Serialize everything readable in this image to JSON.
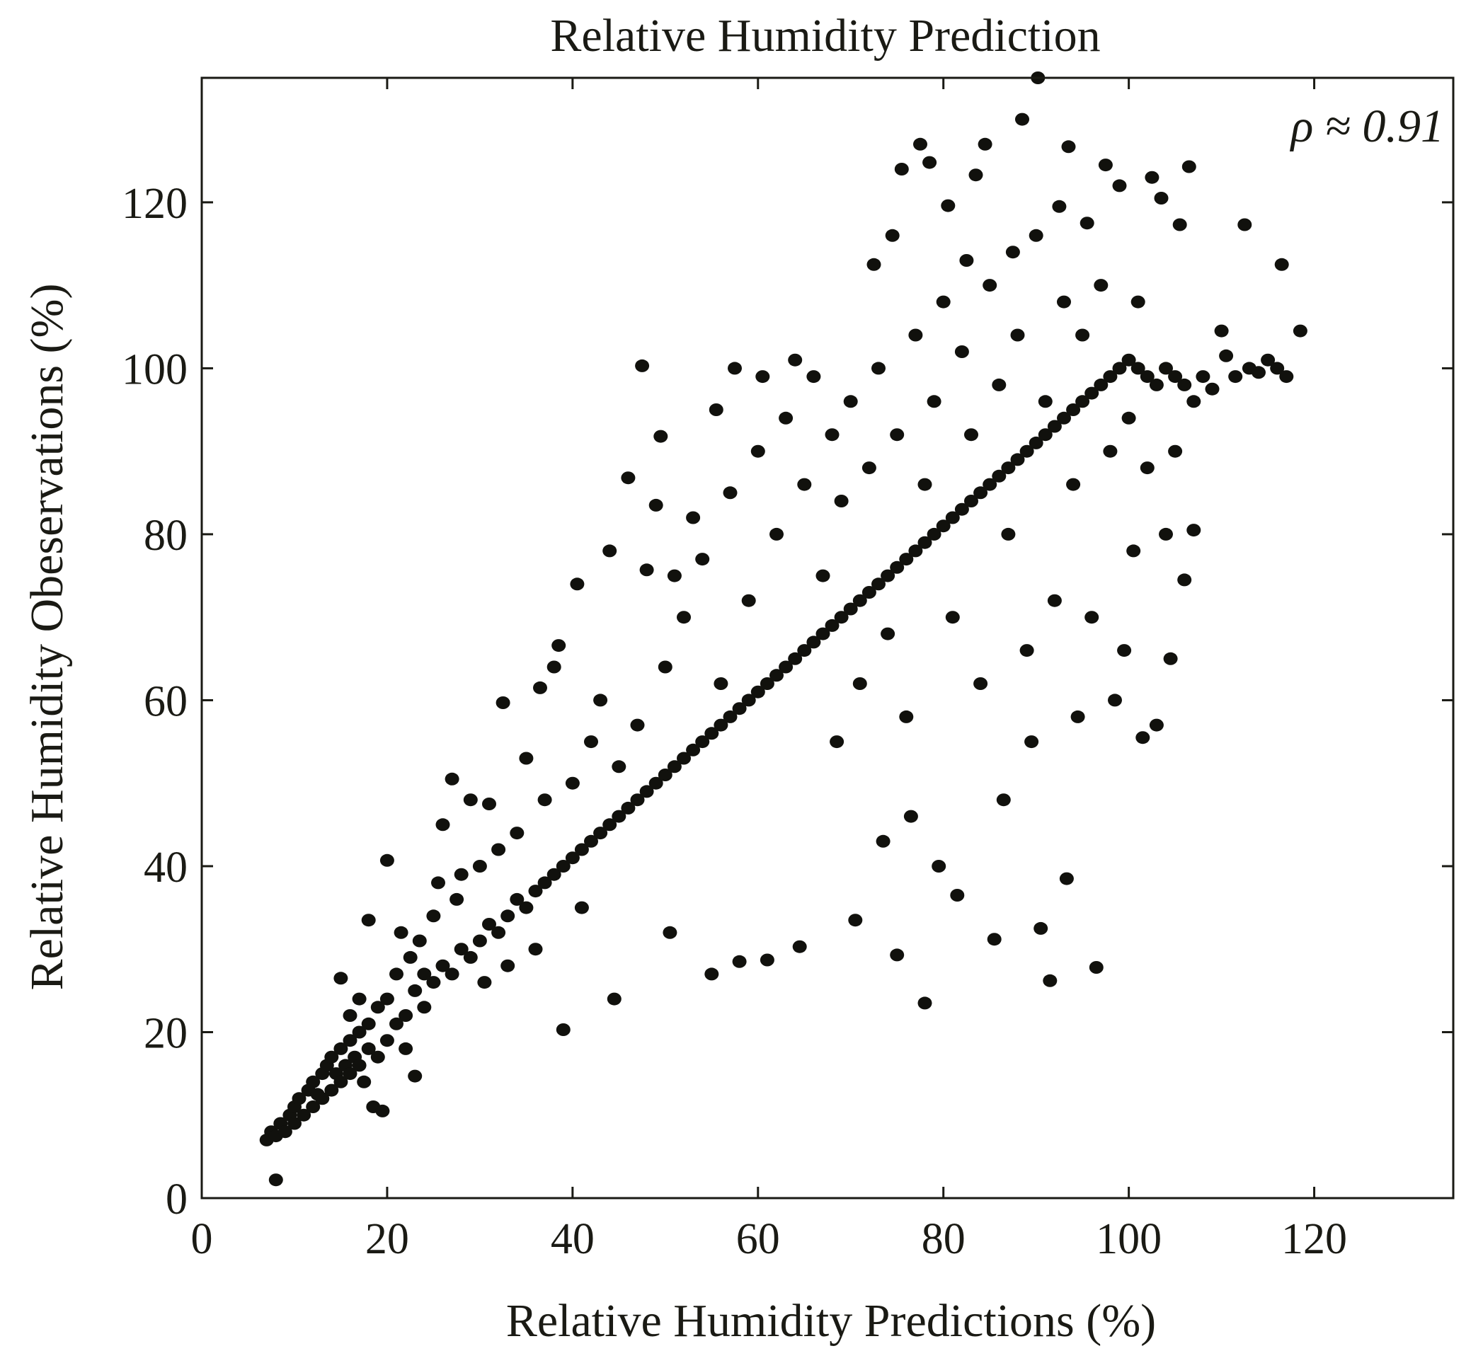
{
  "chart_data": {
    "type": "scatter",
    "title": "Relative Humidity Prediction",
    "xlabel": "Relative Humidity Predictions (%)",
    "ylabel": "Relative Humidity Obeservations (%)",
    "annotation": "ρ ≈ 0.91",
    "xlim": [
      0,
      135
    ],
    "ylim": [
      0,
      135
    ],
    "xticks": [
      0,
      20,
      40,
      60,
      80,
      100,
      120
    ],
    "yticks": [
      0,
      20,
      40,
      60,
      80,
      100,
      120
    ],
    "xtick_labels": [
      "0",
      "20",
      "40",
      "60",
      "80",
      "100",
      "120"
    ],
    "ytick_labels": [
      "0",
      "20",
      "40",
      "60",
      "80",
      "100",
      "120"
    ],
    "grid": false,
    "legend": "none",
    "marker_color": "#11110d",
    "points": [
      [
        7,
        7
      ],
      [
        7.5,
        8
      ],
      [
        8,
        2.2
      ],
      [
        8,
        7.5
      ],
      [
        8.5,
        9
      ],
      [
        9,
        8
      ],
      [
        9.5,
        10
      ],
      [
        10,
        9
      ],
      [
        10,
        11
      ],
      [
        10.5,
        12
      ],
      [
        11,
        10
      ],
      [
        11.5,
        13
      ],
      [
        12,
        11
      ],
      [
        12,
        14
      ],
      [
        12.5,
        12.5
      ],
      [
        13,
        15
      ],
      [
        13,
        12
      ],
      [
        13.5,
        16
      ],
      [
        14,
        13
      ],
      [
        14,
        17
      ],
      [
        14.5,
        15
      ],
      [
        15,
        14
      ],
      [
        15,
        18
      ],
      [
        15,
        26.5
      ],
      [
        15.5,
        16
      ],
      [
        16,
        15
      ],
      [
        16,
        19
      ],
      [
        16,
        22
      ],
      [
        16.5,
        17
      ],
      [
        17,
        16
      ],
      [
        17,
        20
      ],
      [
        17,
        24
      ],
      [
        17.5,
        14
      ],
      [
        18,
        18
      ],
      [
        18,
        21
      ],
      [
        18,
        33.5
      ],
      [
        18.5,
        11
      ],
      [
        19,
        17
      ],
      [
        19,
        23
      ],
      [
        19.5,
        10.5
      ],
      [
        20,
        19
      ],
      [
        20,
        24
      ],
      [
        20,
        40.7
      ],
      [
        21,
        21
      ],
      [
        21,
        27
      ],
      [
        21.5,
        32
      ],
      [
        22,
        22
      ],
      [
        22,
        18
      ],
      [
        22.5,
        29
      ],
      [
        23,
        25
      ],
      [
        23,
        14.7
      ],
      [
        23.5,
        31
      ],
      [
        24,
        23
      ],
      [
        24,
        27
      ],
      [
        25,
        26
      ],
      [
        25,
        34
      ],
      [
        25.5,
        38
      ],
      [
        26,
        28
      ],
      [
        26,
        45
      ],
      [
        27,
        27
      ],
      [
        27,
        50.5
      ],
      [
        27.5,
        36
      ],
      [
        28,
        30
      ],
      [
        28,
        39
      ],
      [
        29,
        29
      ],
      [
        29,
        48
      ],
      [
        30,
        31
      ],
      [
        30,
        40
      ],
      [
        30.5,
        26
      ],
      [
        31,
        33
      ],
      [
        31,
        47.5
      ],
      [
        32,
        32
      ],
      [
        32,
        42
      ],
      [
        32.5,
        59.7
      ],
      [
        33,
        34
      ],
      [
        33,
        28
      ],
      [
        34,
        36
      ],
      [
        34,
        44
      ],
      [
        35,
        35
      ],
      [
        35,
        53
      ],
      [
        36,
        37
      ],
      [
        36,
        30
      ],
      [
        36.5,
        61.5
      ],
      [
        37,
        38
      ],
      [
        37,
        48
      ],
      [
        38,
        39
      ],
      [
        38,
        64
      ],
      [
        38.5,
        66.6
      ],
      [
        39,
        40
      ],
      [
        39,
        20.3
      ],
      [
        40,
        41
      ],
      [
        40,
        50
      ],
      [
        40.5,
        74
      ],
      [
        41,
        42
      ],
      [
        41,
        35
      ],
      [
        42,
        43
      ],
      [
        42,
        55
      ],
      [
        43,
        44
      ],
      [
        43,
        60
      ],
      [
        44,
        45
      ],
      [
        44,
        78
      ],
      [
        44.5,
        24
      ],
      [
        45,
        46
      ],
      [
        45,
        52
      ],
      [
        46,
        47
      ],
      [
        46,
        86.8
      ],
      [
        47,
        48
      ],
      [
        47,
        57
      ],
      [
        47.5,
        100.3
      ],
      [
        48,
        49
      ],
      [
        48,
        75.7
      ],
      [
        49,
        50
      ],
      [
        49,
        83.5
      ],
      [
        49.5,
        91.8
      ],
      [
        50,
        51
      ],
      [
        50,
        64
      ],
      [
        50.5,
        32
      ],
      [
        51,
        52
      ],
      [
        51,
        75
      ],
      [
        52,
        53
      ],
      [
        52,
        70
      ],
      [
        53,
        54
      ],
      [
        53,
        82
      ],
      [
        54,
        55
      ],
      [
        54,
        77
      ],
      [
        55,
        56
      ],
      [
        55,
        27
      ],
      [
        55.5,
        95
      ],
      [
        56,
        57
      ],
      [
        56,
        62
      ],
      [
        57,
        58
      ],
      [
        57,
        85
      ],
      [
        57.5,
        100
      ],
      [
        58,
        59
      ],
      [
        58,
        28.5
      ],
      [
        59,
        60
      ],
      [
        59,
        72
      ],
      [
        60,
        61
      ],
      [
        60,
        90
      ],
      [
        60.5,
        99
      ],
      [
        61,
        62
      ],
      [
        61,
        28.7
      ],
      [
        62,
        63
      ],
      [
        62,
        80
      ],
      [
        63,
        64
      ],
      [
        63,
        94
      ],
      [
        64,
        65
      ],
      [
        64,
        101
      ],
      [
        64.5,
        30.3
      ],
      [
        65,
        66
      ],
      [
        65,
        86
      ],
      [
        66,
        67
      ],
      [
        66,
        99
      ],
      [
        67,
        68
      ],
      [
        67,
        75
      ],
      [
        68,
        69
      ],
      [
        68,
        92
      ],
      [
        68.5,
        55
      ],
      [
        69,
        70
      ],
      [
        69,
        84
      ],
      [
        70,
        71
      ],
      [
        70,
        96
      ],
      [
        70.5,
        33.5
      ],
      [
        71,
        72
      ],
      [
        71,
        62
      ],
      [
        72,
        73
      ],
      [
        72,
        88
      ],
      [
        72.5,
        112.5
      ],
      [
        73,
        74
      ],
      [
        73,
        100
      ],
      [
        73.5,
        43
      ],
      [
        74,
        75
      ],
      [
        74,
        68
      ],
      [
        74.5,
        116
      ],
      [
        75,
        76
      ],
      [
        75,
        92
      ],
      [
        75,
        29.3
      ],
      [
        75.5,
        124
      ],
      [
        76,
        77
      ],
      [
        76,
        58
      ],
      [
        76.5,
        46
      ],
      [
        77,
        78
      ],
      [
        77,
        104
      ],
      [
        77.5,
        127
      ],
      [
        78,
        79
      ],
      [
        78,
        86
      ],
      [
        78,
        23.5
      ],
      [
        78.5,
        124.8
      ],
      [
        79,
        80
      ],
      [
        79,
        96
      ],
      [
        79.5,
        40
      ],
      [
        80,
        81
      ],
      [
        80,
        108
      ],
      [
        80.5,
        119.6
      ],
      [
        81,
        82
      ],
      [
        81,
        70
      ],
      [
        81.5,
        36.5
      ],
      [
        82,
        83
      ],
      [
        82,
        102
      ],
      [
        82.5,
        113
      ],
      [
        83,
        84
      ],
      [
        83,
        92
      ],
      [
        83.5,
        123.3
      ],
      [
        84,
        85
      ],
      [
        84,
        62
      ],
      [
        84.5,
        127
      ],
      [
        85,
        86
      ],
      [
        85,
        110
      ],
      [
        85.5,
        31.2
      ],
      [
        86,
        87
      ],
      [
        86,
        98
      ],
      [
        86.5,
        48
      ],
      [
        87,
        88
      ],
      [
        87,
        80
      ],
      [
        87.5,
        114
      ],
      [
        88,
        89
      ],
      [
        88,
        104
      ],
      [
        88.5,
        130
      ],
      [
        89,
        90
      ],
      [
        89,
        66
      ],
      [
        89.5,
        55
      ],
      [
        90,
        91
      ],
      [
        90,
        116
      ],
      [
        90.2,
        135
      ],
      [
        90.5,
        32.5
      ],
      [
        91,
        92
      ],
      [
        91,
        96
      ],
      [
        91.5,
        26.2
      ],
      [
        92,
        93
      ],
      [
        92,
        72
      ],
      [
        92.5,
        119.5
      ],
      [
        93,
        94
      ],
      [
        93,
        108
      ],
      [
        93.3,
        38.5
      ],
      [
        93.5,
        126.7
      ],
      [
        94,
        95
      ],
      [
        94,
        86
      ],
      [
        94.5,
        58
      ],
      [
        95,
        96
      ],
      [
        95,
        104
      ],
      [
        95.5,
        117.5
      ],
      [
        96,
        97
      ],
      [
        96,
        70
      ],
      [
        96.5,
        27.8
      ],
      [
        97,
        98
      ],
      [
        97,
        110
      ],
      [
        97.5,
        124.5
      ],
      [
        98,
        99
      ],
      [
        98,
        90
      ],
      [
        98.5,
        60
      ],
      [
        99,
        100
      ],
      [
        99,
        122
      ],
      [
        99.5,
        66
      ],
      [
        100,
        101
      ],
      [
        100,
        94
      ],
      [
        100.5,
        78
      ],
      [
        101,
        100
      ],
      [
        101,
        108
      ],
      [
        101.5,
        55.5
      ],
      [
        102,
        99
      ],
      [
        102,
        88
      ],
      [
        102.5,
        123
      ],
      [
        103,
        98
      ],
      [
        103,
        57
      ],
      [
        103.5,
        120.5
      ],
      [
        104,
        100
      ],
      [
        104,
        80
      ],
      [
        104.5,
        65
      ],
      [
        105,
        99
      ],
      [
        105,
        90
      ],
      [
        105.5,
        117.3
      ],
      [
        106,
        98
      ],
      [
        106,
        74.5
      ],
      [
        106.5,
        124.3
      ],
      [
        107,
        96
      ],
      [
        107,
        80.5
      ],
      [
        108,
        99
      ],
      [
        109,
        97.5
      ],
      [
        110,
        104.5
      ],
      [
        110.5,
        101.5
      ],
      [
        111.5,
        99
      ],
      [
        112.5,
        117.3
      ],
      [
        113,
        100
      ],
      [
        114,
        99.5
      ],
      [
        115,
        101
      ],
      [
        116,
        100
      ],
      [
        116.5,
        112.5
      ],
      [
        117,
        99
      ],
      [
        118.5,
        104.5
      ]
    ]
  }
}
